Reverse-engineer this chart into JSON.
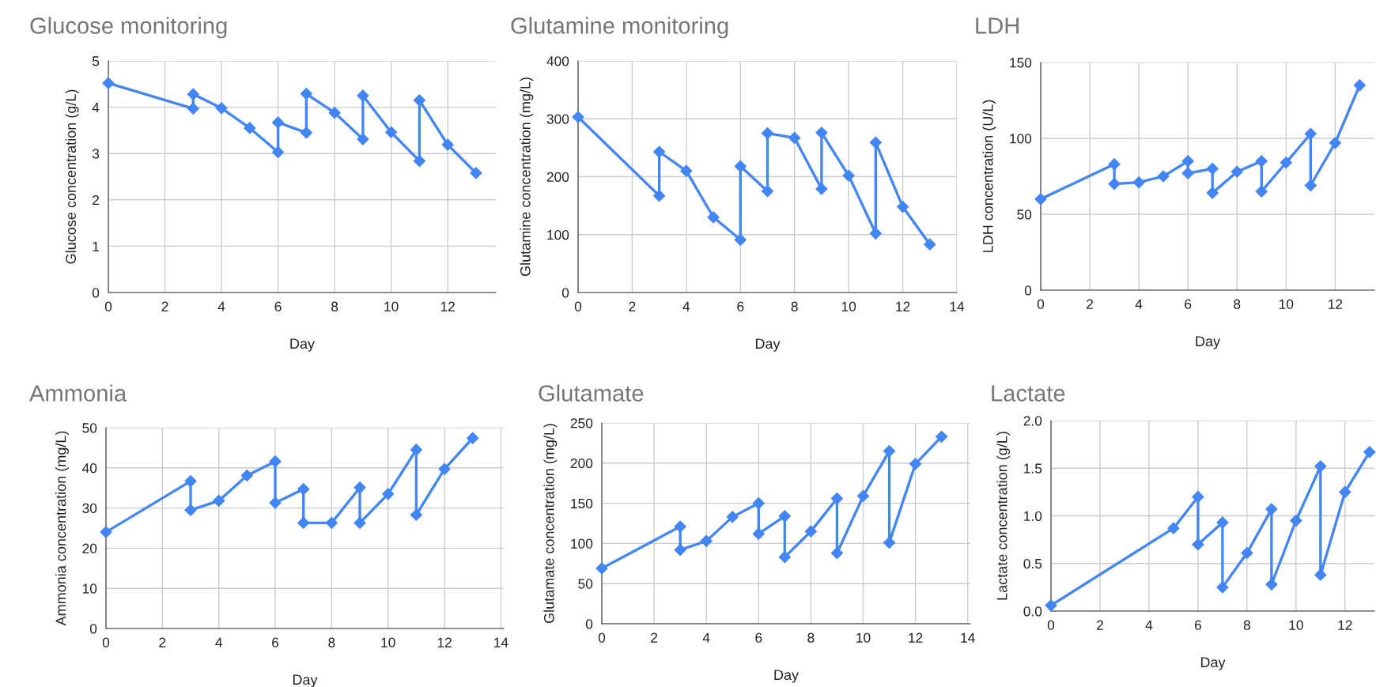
{
  "chart_data": [
    {
      "type": "line",
      "title": "Glucose monitoring",
      "xlabel": "Day",
      "ylabel": "Glucose concentration (g/L)",
      "x": [
        0,
        3,
        3,
        4,
        5,
        6,
        6,
        7,
        7,
        8,
        9,
        9,
        10,
        11,
        11,
        12,
        13
      ],
      "series": [
        {
          "color": "#4285f4",
          "values": [
            4.52,
            3.97,
            4.28,
            3.98,
            3.55,
            3.03,
            3.67,
            3.45,
            4.29,
            3.88,
            3.31,
            4.25,
            3.46,
            2.84,
            4.15,
            3.19,
            2.58
          ]
        }
      ],
      "xlim": [
        0,
        13.7
      ],
      "xticks": [
        0,
        2,
        4,
        6,
        8,
        10,
        12
      ],
      "ylim": [
        0,
        5
      ],
      "yticks": [
        0,
        1,
        2,
        3,
        4,
        5
      ],
      "grid": true,
      "marker": "diamond",
      "line_style": "solid"
    },
    {
      "type": "line",
      "title": "Glutamine monitoring",
      "xlabel": "Day",
      "ylabel": "Glutamine concentration (mg/L)",
      "x": [
        0,
        3,
        3,
        4,
        5,
        6,
        6,
        7,
        7,
        8,
        9,
        9,
        10,
        11,
        11,
        12,
        13
      ],
      "series": [
        {
          "color": "#4285f4",
          "values": [
            303,
            167,
            243,
            210,
            130,
            91,
            218,
            175,
            275,
            267,
            179,
            276,
            202,
            102,
            259,
            148,
            83
          ]
        }
      ],
      "xlim": [
        0,
        14
      ],
      "xticks": [
        0,
        2,
        4,
        6,
        8,
        10,
        12,
        14
      ],
      "ylim": [
        0,
        400
      ],
      "yticks": [
        0,
        100,
        200,
        300,
        400
      ],
      "grid": true,
      "marker": "diamond",
      "line_style": "solid"
    },
    {
      "type": "line",
      "title": "LDH",
      "xlabel": "Day",
      "ylabel": "LDH concentration (U/L)",
      "x": [
        0,
        3,
        3,
        4,
        5,
        6,
        6,
        7,
        7,
        8,
        9,
        9,
        10,
        11,
        11,
        12,
        13
      ],
      "series": [
        {
          "color": "#4285f4",
          "values": [
            60,
            83,
            70,
            71,
            75,
            85,
            77,
            80,
            64,
            78,
            85,
            65,
            84,
            103,
            69,
            97,
            135
          ]
        }
      ],
      "xlim": [
        0,
        13.6
      ],
      "xticks": [
        0,
        2,
        4,
        6,
        8,
        10,
        12
      ],
      "ylim": [
        0,
        150
      ],
      "yticks": [
        0,
        50,
        100,
        150
      ],
      "grid": true,
      "marker": "diamond",
      "line_style": "solid"
    },
    {
      "type": "line",
      "title": "Ammonia",
      "xlabel": "Day",
      "ylabel": "Ammonia concentration (mg/L)",
      "x": [
        0,
        3,
        3,
        4,
        5,
        6,
        6,
        7,
        7,
        8,
        9,
        9,
        10,
        11,
        11,
        12,
        13
      ],
      "series": [
        {
          "color": "#4285f4",
          "values": [
            24,
            36.7,
            29.5,
            31.8,
            38.1,
            41.6,
            31.3,
            34.7,
            26.3,
            26.3,
            35.1,
            26.3,
            33.5,
            44.5,
            28.3,
            39.7,
            47.4
          ]
        }
      ],
      "xlim": [
        0,
        14.1
      ],
      "xticks": [
        0,
        2,
        4,
        6,
        8,
        10,
        12,
        14
      ],
      "ylim": [
        0,
        50
      ],
      "yticks": [
        0,
        10,
        20,
        30,
        40,
        50
      ],
      "grid": true,
      "marker": "diamond",
      "line_style": "solid"
    },
    {
      "type": "line",
      "title": "Glutamate",
      "xlabel": "Day",
      "ylabel": "Glutamate concentration (mg/L)",
      "x": [
        0,
        3,
        3,
        4,
        5,
        6,
        6,
        7,
        7,
        8,
        9,
        9,
        10,
        11,
        11,
        12,
        13
      ],
      "series": [
        {
          "color": "#4285f4",
          "values": [
            69,
            121,
            92,
            103,
            133,
            150,
            112,
            134,
            83,
            115,
            156,
            88,
            159,
            215,
            101,
            199,
            233
          ]
        }
      ],
      "xlim": [
        0,
        14.1
      ],
      "xticks": [
        0,
        2,
        4,
        6,
        8,
        10,
        12,
        14
      ],
      "ylim": [
        0,
        250
      ],
      "yticks": [
        0,
        50,
        100,
        150,
        200,
        250
      ],
      "grid": true,
      "marker": "diamond",
      "line_style": "solid"
    },
    {
      "type": "line",
      "title": "Lactate",
      "xlabel": "Day",
      "ylabel": "Lactate concentration (g/L)",
      "x": [
        0,
        5,
        6,
        6,
        7,
        7,
        8,
        9,
        9,
        10,
        11,
        11,
        12,
        13
      ],
      "series": [
        {
          "color": "#4285f4",
          "values": [
            0.06,
            0.87,
            1.2,
            0.7,
            0.93,
            0.25,
            0.61,
            1.07,
            0.28,
            0.95,
            1.52,
            0.38,
            1.25,
            1.67
          ]
        }
      ],
      "xlim": [
        0,
        13.2
      ],
      "xticks": [
        0,
        2,
        4,
        6,
        8,
        10,
        12
      ],
      "ylim": [
        0,
        2.0
      ],
      "yticks": [
        {
          "value": 0,
          "label": "0.0"
        },
        {
          "value": 0.5,
          "label": "0.5"
        },
        {
          "value": 1.0,
          "label": "1.0"
        },
        {
          "value": 1.5,
          "label": "1.5"
        },
        {
          "value": 2.0,
          "label": "2.0"
        }
      ],
      "grid": true,
      "marker": "diamond",
      "line_style": "solid"
    }
  ]
}
